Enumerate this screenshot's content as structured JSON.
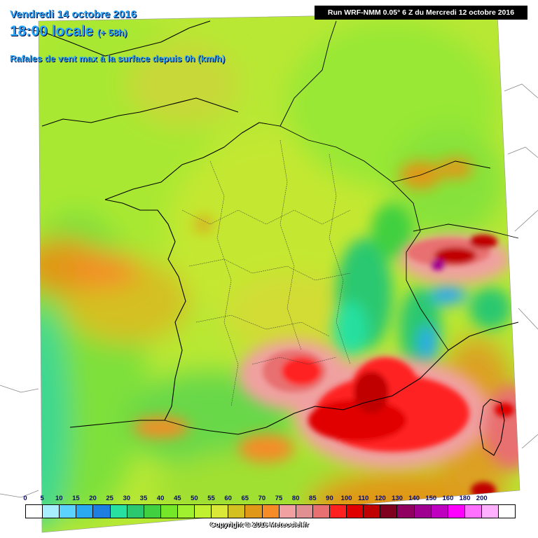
{
  "header": {
    "date": "Vendredi 14 octobre 2016",
    "time": "18:00 locale",
    "lead": "(+ 58h)",
    "parameter": "Rafales de vent max à la surface depuis 0h (km/h)"
  },
  "run_info": "Run WRF-NMM 0.05° 6 Z du Mercredi 12 octobre 2016",
  "legend": {
    "labels": [
      "0",
      "5",
      "10",
      "15",
      "20",
      "25",
      "30",
      "35",
      "40",
      "45",
      "50",
      "55",
      "60",
      "65",
      "70",
      "75",
      "80",
      "85",
      "90",
      "100",
      "110",
      "120",
      "130",
      "140",
      "150",
      "160",
      "180",
      "200"
    ],
    "colors": [
      "#ffffff",
      "#a8eeff",
      "#5cd2ff",
      "#2aa8f0",
      "#1e7fe0",
      "#28e0a0",
      "#2cc870",
      "#40d040",
      "#74e828",
      "#a0f030",
      "#c0f030",
      "#dce838",
      "#d4c020",
      "#e09818",
      "#f58c28",
      "#f0a0a0",
      "#e09090",
      "#e87070",
      "#ff2020",
      "#e00000",
      "#c00000",
      "#800020",
      "#900060",
      "#a00090",
      "#c000c0",
      "#ff00ff",
      "#ff70ff",
      "#ffb0ff",
      "#ffffff"
    ]
  },
  "copyright": "Copyright © 2016 Meteociel.fr",
  "colors": {
    "title": "#29a8ff",
    "background": "#ffffff"
  }
}
